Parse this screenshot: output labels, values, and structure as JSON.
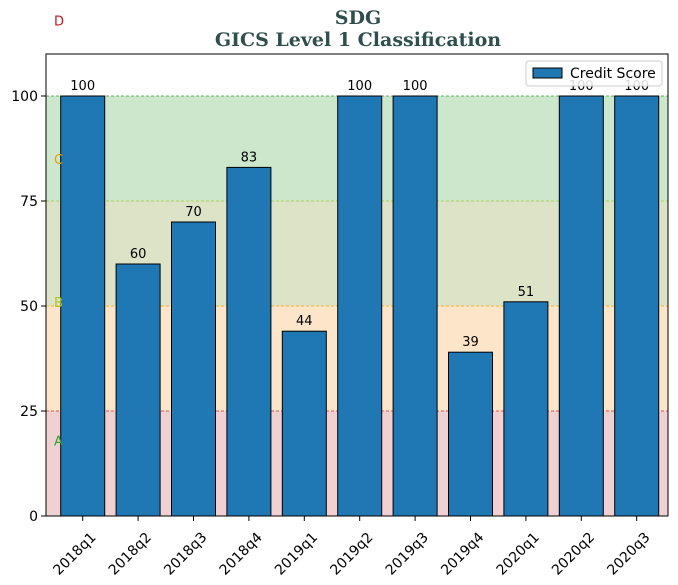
{
  "chart_data": {
    "type": "bar",
    "title": "SDG",
    "subtitle": "GICS Level 1 Classification",
    "title_color": "#2f4f4f",
    "categories": [
      "2018q1",
      "2018q2",
      "2018q3",
      "2018q4",
      "2019q1",
      "2019q2",
      "2019q3",
      "2019q4",
      "2020q1",
      "2020q2",
      "2020q3"
    ],
    "series": [
      {
        "name": "Credit Score",
        "values": [
          100,
          60,
          70,
          83,
          44,
          100,
          100,
          39,
          51,
          100,
          100
        ],
        "color": "#1f77b4"
      }
    ],
    "data_labels": [
      "100",
      "60",
      "70",
      "83",
      "44",
      "100",
      "100",
      "39",
      "51",
      "100",
      "100"
    ],
    "ylim": [
      0,
      110
    ],
    "yticks": [
      "0",
      "25",
      "50",
      "75",
      "100"
    ],
    "xlabel": "",
    "ylabel": "",
    "grid": false,
    "legend_position": "top-right",
    "bands": [
      {
        "from": 0,
        "to": 25,
        "color": "#f0d0d0"
      },
      {
        "from": 25,
        "to": 50,
        "color": "#fde5c9"
      },
      {
        "from": 50,
        "to": 75,
        "color": "#dce3c6"
      },
      {
        "from": 75,
        "to": 100,
        "color": "#cce7cc"
      }
    ],
    "threshold_lines": [
      {
        "value": 25,
        "color": "#d62728"
      },
      {
        "value": 50,
        "color": "#ff9f00"
      },
      {
        "value": 75,
        "color": "#9acd32"
      },
      {
        "value": 100,
        "color": "#2ca02c"
      }
    ],
    "zones": [
      {
        "label": "A",
        "value": 18,
        "color": "#2ca02c"
      },
      {
        "label": "B",
        "value": 51,
        "color": "#b8c21c"
      },
      {
        "label": "C",
        "value": 85,
        "color": "#e8a100"
      },
      {
        "label": "D",
        "value": 118,
        "color": "#c0161c"
      }
    ]
  }
}
